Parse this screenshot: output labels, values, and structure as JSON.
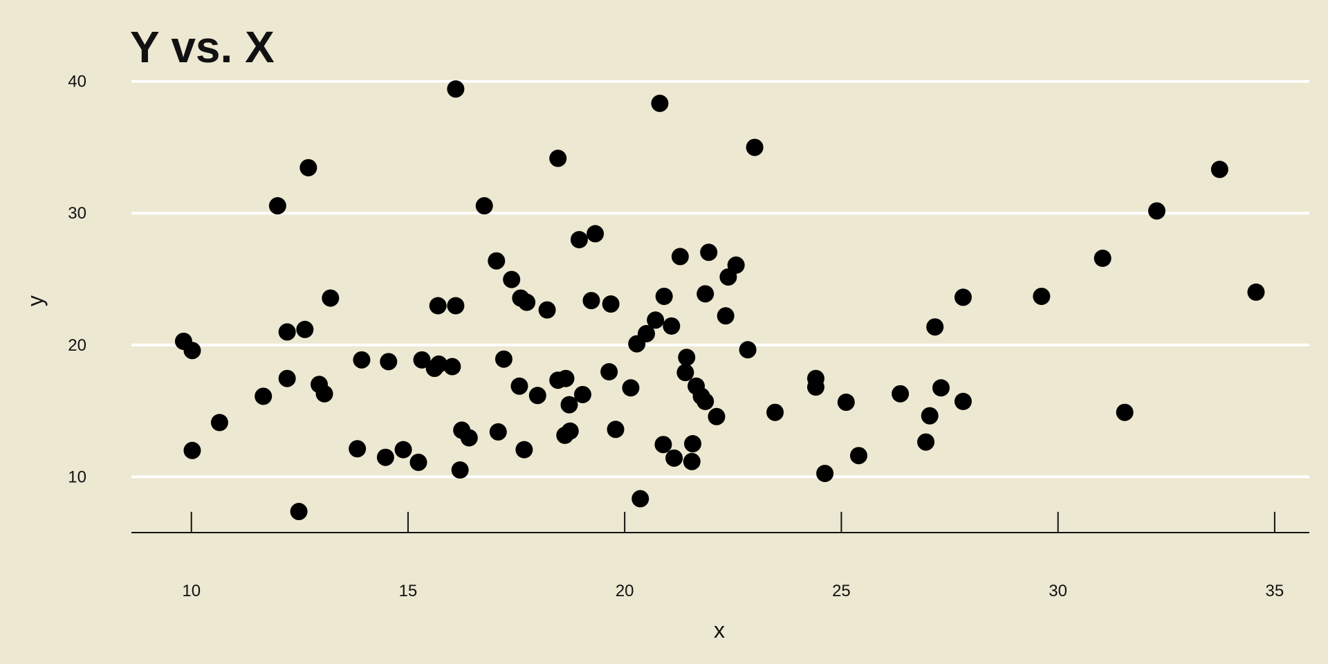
{
  "chart_data": {
    "type": "scatter",
    "title": "Y vs. X",
    "xlabel": "x",
    "ylabel": "y",
    "xlim": [
      8.6,
      35.8
    ],
    "ylim": [
      5.7,
      42
    ],
    "xticks": [
      10,
      15,
      20,
      25,
      30,
      35
    ],
    "yticks": [
      10,
      20,
      30,
      40
    ],
    "grid": "horizontal major lines",
    "legend": "none",
    "colors": {
      "background": "#ece8d1",
      "points": "#000000",
      "grid": "#ffffff"
    },
    "points": [
      [
        9.82,
        20.28
      ],
      [
        10.02,
        19.58
      ],
      [
        10.02,
        12.0
      ],
      [
        10.65,
        14.12
      ],
      [
        11.66,
        16.11
      ],
      [
        11.99,
        30.56
      ],
      [
        12.21,
        20.99
      ],
      [
        12.21,
        17.46
      ],
      [
        12.48,
        7.37
      ],
      [
        12.62,
        21.18
      ],
      [
        12.7,
        33.45
      ],
      [
        12.95,
        17.01
      ],
      [
        13.07,
        16.3
      ],
      [
        13.21,
        23.56
      ],
      [
        13.83,
        12.13
      ],
      [
        13.93,
        18.87
      ],
      [
        14.48,
        11.48
      ],
      [
        14.55,
        18.74
      ],
      [
        14.89,
        12.06
      ],
      [
        15.24,
        11.1
      ],
      [
        15.32,
        18.87
      ],
      [
        15.61,
        18.23
      ],
      [
        15.71,
        18.55
      ],
      [
        15.69,
        22.98
      ],
      [
        16.02,
        18.36
      ],
      [
        16.1,
        22.98
      ],
      [
        16.1,
        39.42
      ],
      [
        16.24,
        13.54
      ],
      [
        16.2,
        10.52
      ],
      [
        16.41,
        12.96
      ],
      [
        16.76,
        30.56
      ],
      [
        17.04,
        26.38
      ],
      [
        17.08,
        13.41
      ],
      [
        17.21,
        18.93
      ],
      [
        17.39,
        24.97
      ],
      [
        17.57,
        16.88
      ],
      [
        17.6,
        23.56
      ],
      [
        17.68,
        12.06
      ],
      [
        17.74,
        23.24
      ],
      [
        17.99,
        16.17
      ],
      [
        18.21,
        22.66
      ],
      [
        18.46,
        34.16
      ],
      [
        18.46,
        17.33
      ],
      [
        18.64,
        17.46
      ],
      [
        18.62,
        13.15
      ],
      [
        18.72,
        15.47
      ],
      [
        18.74,
        13.47
      ],
      [
        18.95,
        27.99
      ],
      [
        19.03,
        16.24
      ],
      [
        19.23,
        23.37
      ],
      [
        19.32,
        28.44
      ],
      [
        19.64,
        17.97
      ],
      [
        19.68,
        23.11
      ],
      [
        19.79,
        13.6
      ],
      [
        20.14,
        16.75
      ],
      [
        20.28,
        20.09
      ],
      [
        20.36,
        8.34
      ],
      [
        20.5,
        20.86
      ],
      [
        20.71,
        21.89
      ],
      [
        20.81,
        38.33
      ],
      [
        20.89,
        12.45
      ],
      [
        20.91,
        23.69
      ],
      [
        21.08,
        21.44
      ],
      [
        21.14,
        11.42
      ],
      [
        21.28,
        26.71
      ],
      [
        21.4,
        17.91
      ],
      [
        21.43,
        19.06
      ],
      [
        21.55,
        11.16
      ],
      [
        21.57,
        12.51
      ],
      [
        21.65,
        16.88
      ],
      [
        21.77,
        16.11
      ],
      [
        21.86,
        15.72
      ],
      [
        21.86,
        23.88
      ],
      [
        21.94,
        27.03
      ],
      [
        22.12,
        14.57
      ],
      [
        22.33,
        22.21
      ],
      [
        22.39,
        25.16
      ],
      [
        22.57,
        26.06
      ],
      [
        22.84,
        19.64
      ],
      [
        23.0,
        34.99
      ],
      [
        23.47,
        14.89
      ],
      [
        24.41,
        17.46
      ],
      [
        24.41,
        16.81
      ],
      [
        24.62,
        10.26
      ],
      [
        25.11,
        15.66
      ],
      [
        25.4,
        11.61
      ],
      [
        26.36,
        16.3
      ],
      [
        26.95,
        12.64
      ],
      [
        27.04,
        14.63
      ],
      [
        27.16,
        21.37
      ],
      [
        27.3,
        16.75
      ],
      [
        27.81,
        15.72
      ],
      [
        27.81,
        23.62
      ],
      [
        29.62,
        23.69
      ],
      [
        31.03,
        26.58
      ],
      [
        31.54,
        14.89
      ],
      [
        32.28,
        30.17
      ],
      [
        33.73,
        33.32
      ],
      [
        34.57,
        24.01
      ]
    ]
  }
}
